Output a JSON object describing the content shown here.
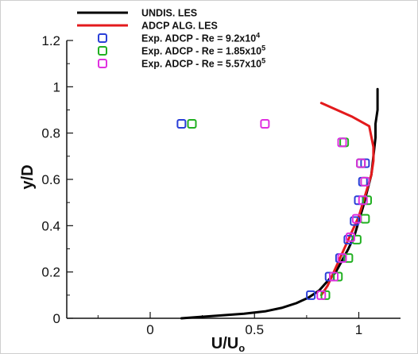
{
  "chart_data": {
    "type": "line",
    "xlabel": "U/U",
    "xlabel_sub": "o",
    "ylabel": "y/D",
    "xlim": [
      -0.4,
      1.2
    ],
    "ylim": [
      0,
      1.2
    ],
    "xticks": [
      0,
      0.5,
      1
    ],
    "xtick_labels": [
      "0",
      "0.5",
      "1"
    ],
    "yticks": [
      0,
      0.2,
      0.4,
      0.6,
      0.8,
      1,
      1.2
    ],
    "ytick_labels": [
      "0",
      "0.2",
      "0.4",
      "0.6",
      "0.8",
      "1",
      "1.2"
    ],
    "grid": false,
    "legend_position": "top",
    "series": [
      {
        "name": "UNDIS. LES",
        "kind": "line",
        "color": "#000000",
        "x": [
          0.15,
          0.3,
          0.45,
          0.55,
          0.63,
          0.7,
          0.76,
          0.81,
          0.85,
          0.89,
          0.92,
          0.95,
          0.98,
          1.0,
          1.02,
          1.04,
          1.06,
          1.07,
          1.08,
          1.08,
          1.09,
          1.09,
          1.09
        ],
        "y": [
          0.0,
          0.01,
          0.02,
          0.03,
          0.045,
          0.065,
          0.09,
          0.12,
          0.16,
          0.2,
          0.25,
          0.3,
          0.36,
          0.42,
          0.48,
          0.55,
          0.62,
          0.7,
          0.78,
          0.84,
          0.9,
          0.96,
          0.99
        ]
      },
      {
        "name": "ADCP ALG. LES",
        "kind": "line",
        "color": "#e31a1c",
        "x": [
          0.82,
          0.85,
          0.88,
          0.91,
          0.94,
          0.97,
          1.0,
          1.02,
          1.04,
          1.06,
          1.07,
          1.07,
          1.05,
          0.97,
          0.82
        ],
        "y": [
          0.1,
          0.14,
          0.2,
          0.26,
          0.32,
          0.38,
          0.44,
          0.5,
          0.56,
          0.62,
          0.68,
          0.74,
          0.83,
          0.87,
          0.93
        ]
      },
      {
        "name": "Exp. ADCP - Re = 9.2x10",
        "name_sup": "4",
        "kind": "marker",
        "color": "#2a3fd8",
        "x": [
          0.77,
          0.86,
          0.91,
          0.95,
          0.98,
          1.0,
          1.02,
          1.03,
          1.01,
          0.92,
          0.15
        ],
        "y": [
          0.1,
          0.18,
          0.26,
          0.34,
          0.42,
          0.51,
          0.59,
          0.67,
          0.67,
          0.76,
          0.84
        ]
      },
      {
        "name": "Exp. ADCP - Re = 1.85x10",
        "name_sup": "5",
        "kind": "marker",
        "color": "#22b022",
        "x": [
          0.84,
          0.9,
          0.95,
          0.99,
          1.03,
          1.04,
          1.03,
          1.01,
          0.93,
          0.2
        ],
        "y": [
          0.1,
          0.18,
          0.26,
          0.34,
          0.43,
          0.51,
          0.59,
          0.67,
          0.76,
          0.84
        ]
      },
      {
        "name": "Exp. ADCP - Re = 5.57x10",
        "name_sup": "5",
        "kind": "marker",
        "color": "#e030e0",
        "x": [
          0.82,
          0.88,
          0.92,
          0.96,
          0.99,
          1.02,
          1.03,
          1.01,
          0.92,
          0.55
        ],
        "y": [
          0.1,
          0.18,
          0.26,
          0.35,
          0.43,
          0.51,
          0.59,
          0.67,
          0.76,
          0.84
        ]
      }
    ]
  }
}
